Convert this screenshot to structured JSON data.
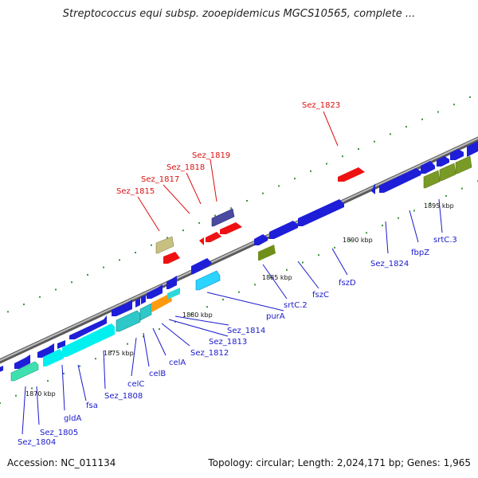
{
  "title": "Streptococcus equi subsp. zooepidemicus MGCS10565, complete ...",
  "footer": {
    "accession": "Accession: NC_011134",
    "summary": "Topology: circular; Length: 2,024,171 bp; Genes: 1,965"
  },
  "scale_labels": [
    "1870 kbp",
    "1875 kbp",
    "1880 kbp",
    "1885 kbp",
    "1890 kbp",
    "1895 kbp"
  ],
  "colors": {
    "label_blue": "#1a1acc",
    "label_red": "#dd1111",
    "backbone": "#888888",
    "tick_green": "#0b7a0b"
  },
  "genes_below": [
    "Sez_1804",
    "Sez_1805",
    "gldA",
    "fsa",
    "Sez_1808",
    "celC",
    "celB",
    "celA",
    "Sez_1812",
    "Sez_1813",
    "Sez_1814",
    "purA",
    "srtC.2",
    "fszC",
    "fszD",
    "Sez_1824",
    "fbpZ",
    "srtC.3"
  ],
  "genes_above": [
    "Sez_1815",
    "Sez_1817",
    "Sez_1818",
    "Sez_1819",
    "Sez_1823"
  ]
}
